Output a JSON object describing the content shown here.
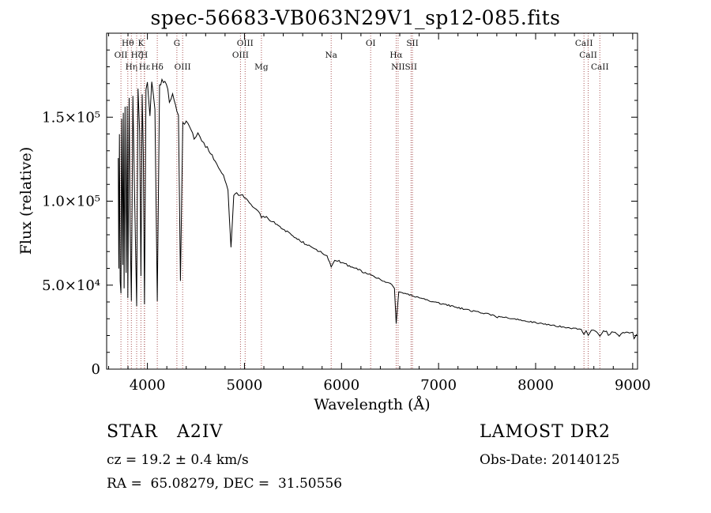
{
  "annotations": {
    "class_line": "STAR   A2IV",
    "survey": "LAMOST DR2",
    "cz_line": "cz = 19.2 ± 0.4 km/s",
    "obs_date_line": "Obs-Date: 20140125",
    "ra_dec_line": "RA =  65.08279, DEC =  31.50556"
  },
  "chart_data": {
    "type": "line",
    "title": "spec-56683-VB063N29V1_sp12-085.fits",
    "xlabel": "Wavelength (Å)",
    "ylabel": "Flux (relative)",
    "xlim": [
      3580,
      9050
    ],
    "ylim": [
      0,
      200000
    ],
    "grid": false,
    "line_color": "#000000",
    "marker_color": "#aa5555",
    "minor_tick_step_x": 200,
    "minor_tick_step_y": 10000,
    "x_ticks": [
      {
        "value": 4000,
        "label": "4000"
      },
      {
        "value": 5000,
        "label": "5000"
      },
      {
        "value": 6000,
        "label": "6000"
      },
      {
        "value": 7000,
        "label": "7000"
      },
      {
        "value": 8000,
        "label": "8000"
      },
      {
        "value": 9000,
        "label": "9000"
      }
    ],
    "y_ticks": [
      {
        "value": 0,
        "label": "0"
      },
      {
        "value": 50000,
        "label": "5.0×10⁴"
      },
      {
        "value": 100000,
        "label": "1.0×10⁵"
      },
      {
        "value": 150000,
        "label": "1.5×10⁵"
      }
    ],
    "line_markers": [
      {
        "label": "OII",
        "wavelength": 3727,
        "row": 2
      },
      {
        "label": "Hθ",
        "wavelength": 3798,
        "row": 1
      },
      {
        "label": "Hη",
        "wavelength": 3835,
        "row": 3
      },
      {
        "label": "Hζ",
        "wavelength": 3889,
        "row": 2
      },
      {
        "label": "K",
        "wavelength": 3933,
        "row": 1
      },
      {
        "label": "H",
        "wavelength": 3968,
        "row": 2
      },
      {
        "label": "Hε",
        "wavelength": 3971,
        "row": 3
      },
      {
        "label": "Hδ",
        "wavelength": 4102,
        "row": 3
      },
      {
        "label": "G",
        "wavelength": 4304,
        "row": 1
      },
      {
        "label": "OIII",
        "wavelength": 4363,
        "row": 3
      },
      {
        "label": "OIII",
        "wavelength": 4959,
        "row": 2
      },
      {
        "label": "OIII",
        "wavelength": 5007,
        "row": 1
      },
      {
        "label": "Mg",
        "wavelength": 5175,
        "row": 3
      },
      {
        "label": "Na",
        "wavelength": 5893,
        "row": 2
      },
      {
        "label": "OI",
        "wavelength": 6300,
        "row": 1
      },
      {
        "label": "Hα",
        "wavelength": 6563,
        "row": 2
      },
      {
        "label": "NII",
        "wavelength": 6583,
        "row": 3
      },
      {
        "label": "SII",
        "wavelength": 6716,
        "row": 3
      },
      {
        "label": "SII",
        "wavelength": 6731,
        "row": 1
      },
      {
        "label": "CaII",
        "wavelength": 8498,
        "row": 1
      },
      {
        "label": "CaII",
        "wavelength": 8542,
        "row": 2
      },
      {
        "label": "CaII",
        "wavelength": 8662,
        "row": 3
      }
    ],
    "spectrum": {
      "points": [
        [
          3700,
          125000
        ],
        [
          3705,
          60000
        ],
        [
          3712,
          140000
        ],
        [
          3719,
          52000
        ],
        [
          3727,
          45000
        ],
        [
          3735,
          148000
        ],
        [
          3745,
          62000
        ],
        [
          3752,
          152000
        ],
        [
          3760,
          48000
        ],
        [
          3770,
          155000
        ],
        [
          3781,
          57000
        ],
        [
          3792,
          158000
        ],
        [
          3798,
          42000
        ],
        [
          3812,
          161000
        ],
        [
          3822,
          85000
        ],
        [
          3835,
          40000
        ],
        [
          3850,
          164000
        ],
        [
          3866,
          110000
        ],
        [
          3889,
          38000
        ],
        [
          3903,
          167000
        ],
        [
          3920,
          140000
        ],
        [
          3933,
          55000
        ],
        [
          3946,
          165000
        ],
        [
          3958,
          128000
        ],
        [
          3970,
          38000
        ],
        [
          3985,
          167000
        ],
        [
          4000,
          170000
        ],
        [
          4026,
          150000
        ],
        [
          4045,
          171000
        ],
        [
          4077,
          155000
        ],
        [
          4102,
          40000
        ],
        [
          4125,
          169000
        ],
        [
          4150,
          172000
        ],
        [
          4180,
          170000
        ],
        [
          4210,
          167000
        ],
        [
          4226,
          159000
        ],
        [
          4260,
          163000
        ],
        [
          4290,
          158000
        ],
        [
          4304,
          153000
        ],
        [
          4320,
          150000
        ],
        [
          4340,
          52000
        ],
        [
          4365,
          146000
        ],
        [
          4400,
          147000
        ],
        [
          4435,
          145000
        ],
        [
          4481,
          137000
        ],
        [
          4520,
          140000
        ],
        [
          4560,
          136500
        ],
        [
          4600,
          133000
        ],
        [
          4650,
          128500
        ],
        [
          4700,
          124000
        ],
        [
          4750,
          119000
        ],
        [
          4800,
          113000
        ],
        [
          4830,
          106000
        ],
        [
          4861,
          72000
        ],
        [
          4890,
          103000
        ],
        [
          4920,
          104500
        ],
        [
          4960,
          104000
        ],
        [
          5000,
          102500
        ],
        [
          5050,
          99500
        ],
        [
          5100,
          96500
        ],
        [
          5140,
          94500
        ],
        [
          5175,
          90000
        ],
        [
          5210,
          91000
        ],
        [
          5260,
          89000
        ],
        [
          5320,
          86500
        ],
        [
          5380,
          84000
        ],
        [
          5440,
          81500
        ],
        [
          5500,
          79000
        ],
        [
          5560,
          76800
        ],
        [
          5620,
          74800
        ],
        [
          5680,
          72800
        ],
        [
          5740,
          71000
        ],
        [
          5800,
          69200
        ],
        [
          5850,
          67400
        ],
        [
          5893,
          61000
        ],
        [
          5930,
          65200
        ],
        [
          5990,
          63800
        ],
        [
          6050,
          62200
        ],
        [
          6110,
          60700
        ],
        [
          6170,
          59200
        ],
        [
          6230,
          57700
        ],
        [
          6290,
          56300
        ],
        [
          6350,
          54800
        ],
        [
          6410,
          53300
        ],
        [
          6470,
          51800
        ],
        [
          6520,
          50000
        ],
        [
          6545,
          48200
        ],
        [
          6563,
          27000
        ],
        [
          6590,
          46000
        ],
        [
          6640,
          45200
        ],
        [
          6700,
          44200
        ],
        [
          6760,
          43200
        ],
        [
          6820,
          42200
        ],
        [
          6880,
          41200
        ],
        [
          6940,
          40300
        ],
        [
          7000,
          39400
        ],
        [
          7060,
          38500
        ],
        [
          7120,
          37700
        ],
        [
          7180,
          36900
        ],
        [
          7240,
          36100
        ],
        [
          7300,
          35300
        ],
        [
          7360,
          34500
        ],
        [
          7420,
          33800
        ],
        [
          7480,
          33100
        ],
        [
          7540,
          32400
        ],
        [
          7605,
          31000
        ],
        [
          7650,
          31200
        ],
        [
          7710,
          30500
        ],
        [
          7770,
          29900
        ],
        [
          7830,
          29300
        ],
        [
          7890,
          28700
        ],
        [
          7950,
          28100
        ],
        [
          8010,
          27500
        ],
        [
          8070,
          27000
        ],
        [
          8130,
          26400
        ],
        [
          8190,
          25900
        ],
        [
          8250,
          25400
        ],
        [
          8310,
          24900
        ],
        [
          8370,
          24400
        ],
        [
          8430,
          24000
        ],
        [
          8470,
          23700
        ],
        [
          8498,
          20500
        ],
        [
          8520,
          23300
        ],
        [
          8542,
          20000
        ],
        [
          8575,
          23000
        ],
        [
          8615,
          22800
        ],
        [
          8662,
          19800
        ],
        [
          8700,
          22600
        ],
        [
          8730,
          22400
        ],
        [
          8750,
          19800
        ],
        [
          8785,
          22200
        ],
        [
          8820,
          22000
        ],
        [
          8862,
          19300
        ],
        [
          8900,
          21900
        ],
        [
          8950,
          21700
        ],
        [
          9000,
          21600
        ],
        [
          9014,
          18000
        ],
        [
          9040,
          20800
        ]
      ]
    }
  }
}
